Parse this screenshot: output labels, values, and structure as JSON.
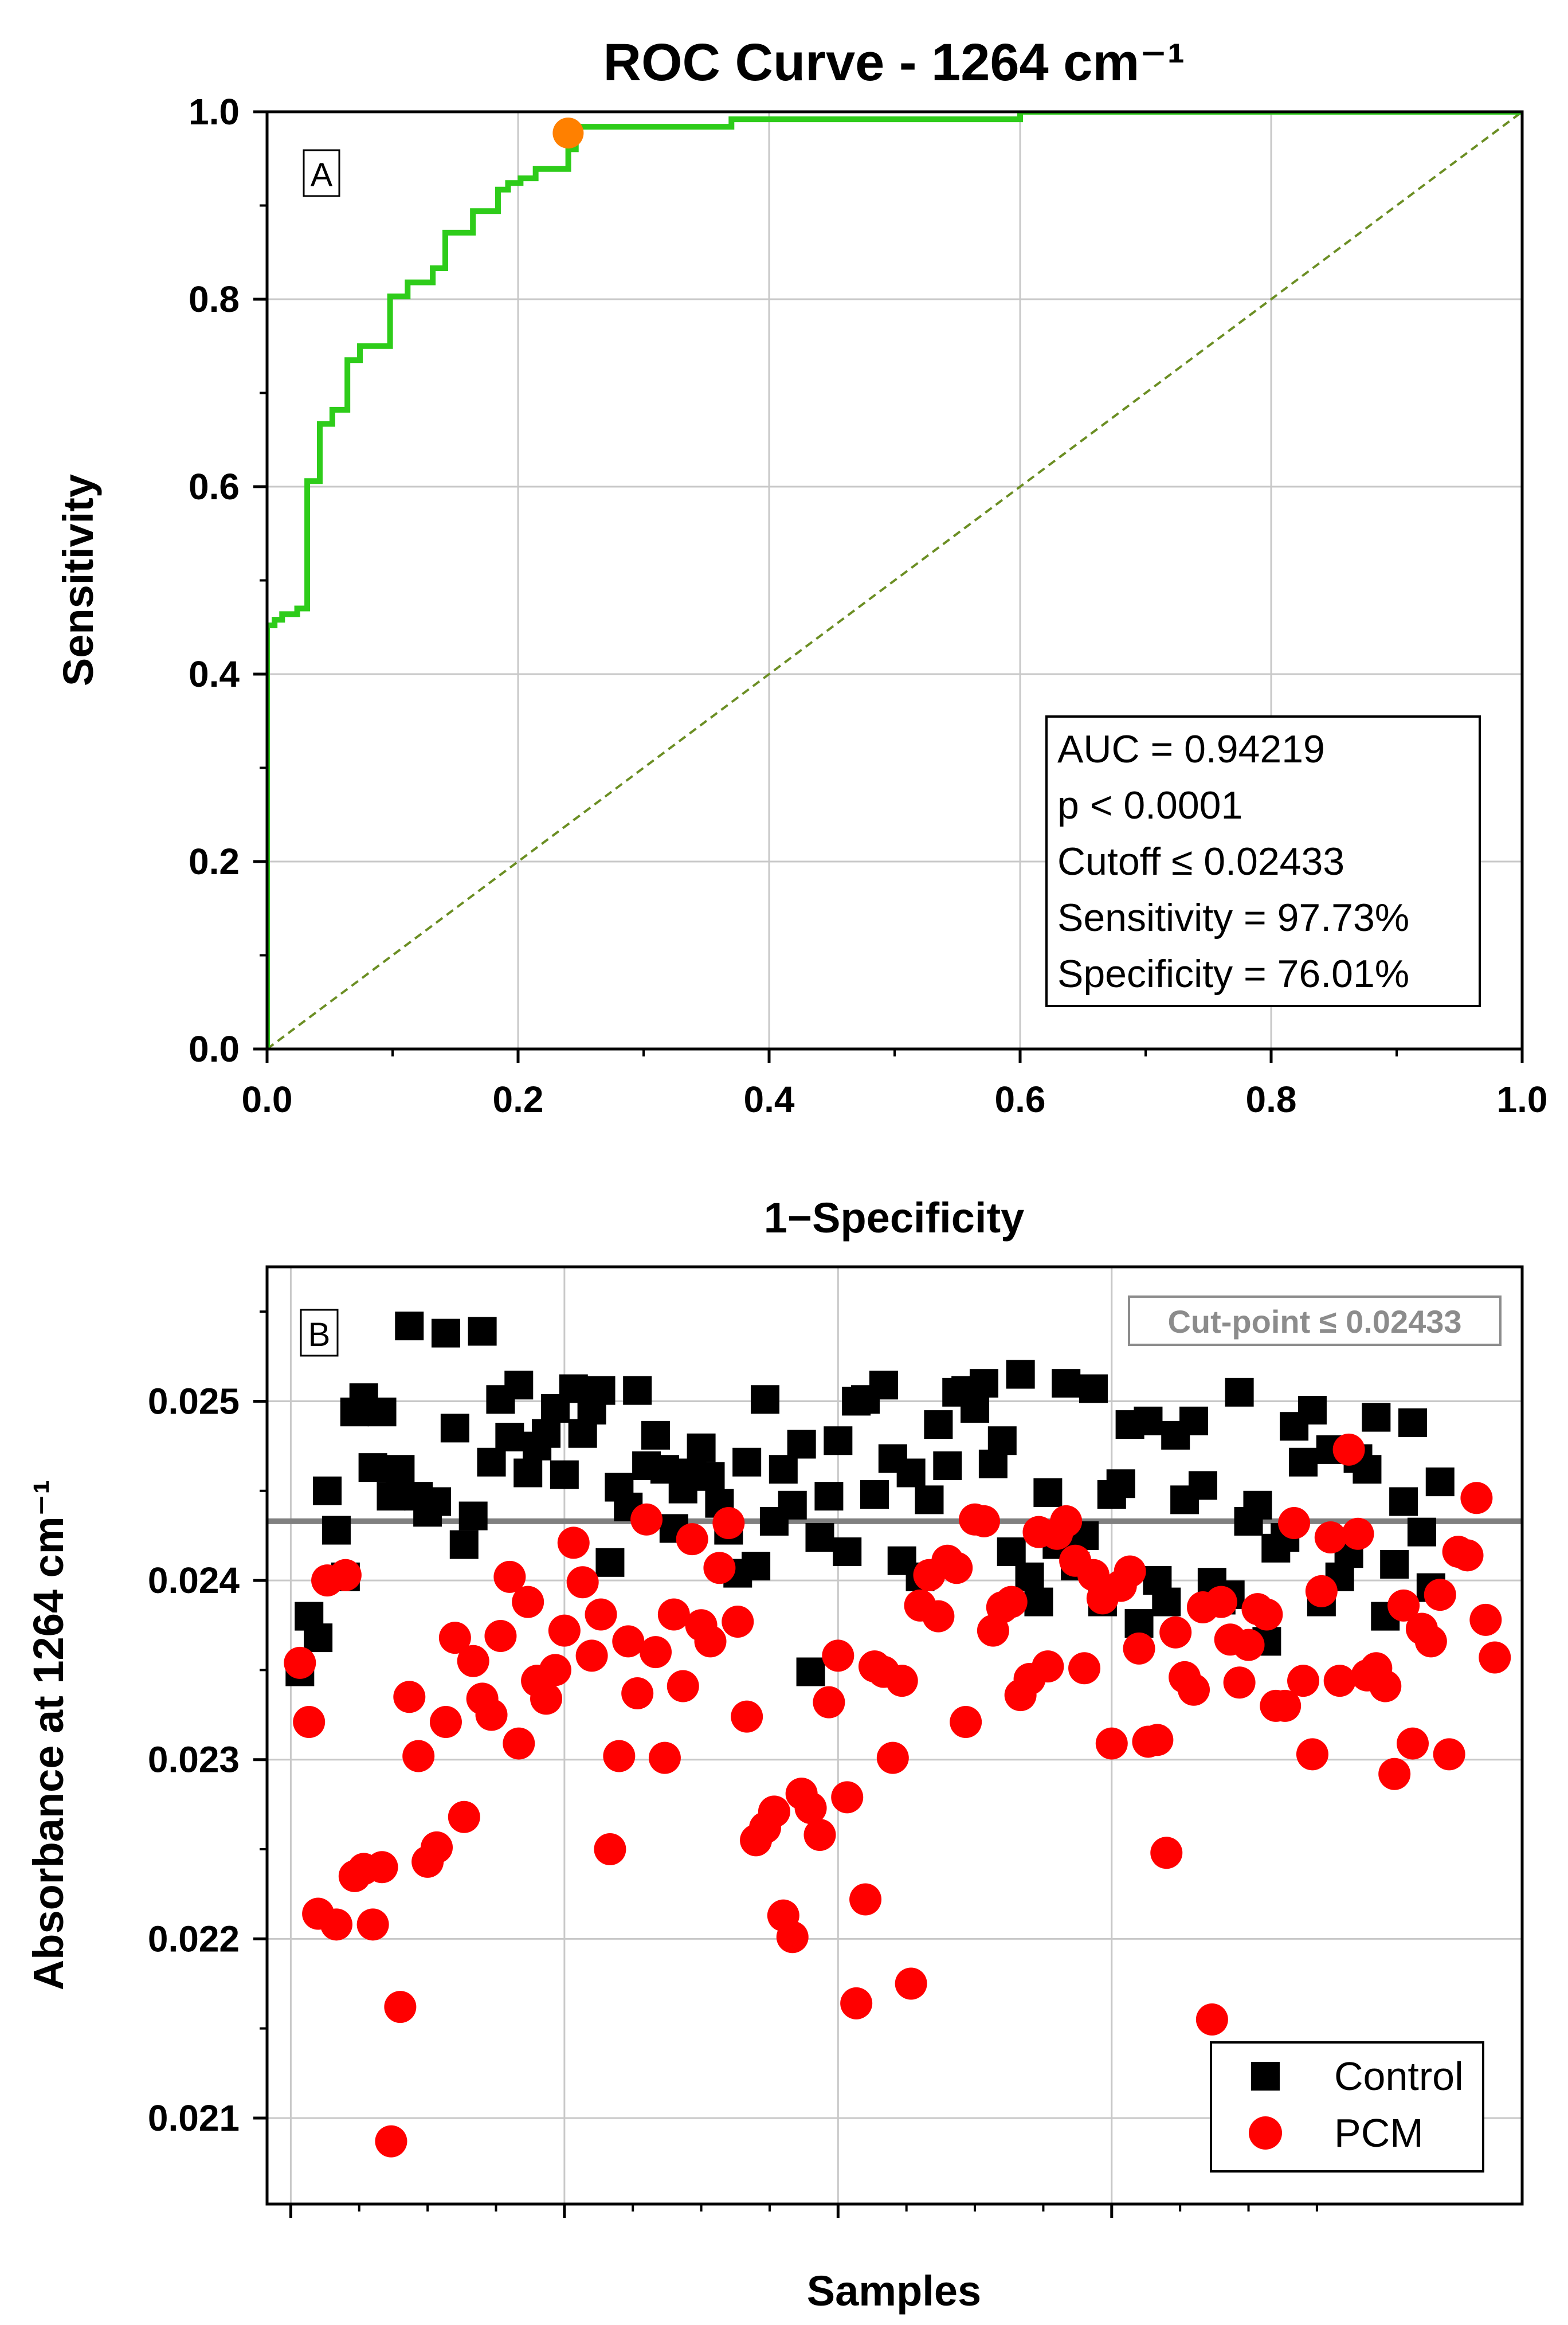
{
  "figure_title": "ROC Curve - 1264 cm⁻¹",
  "colors": {
    "roc_line": "#2ecc1a",
    "cutoff_point": "#ff8000",
    "reference_line": "#6b8e23",
    "grid": "#c8c8c8",
    "control": "#000000",
    "pcm": "#ff0000",
    "cut_line": "#808080"
  },
  "chart_data": [
    {
      "type": "line",
      "panel_label": "A",
      "xlabel": "1−Specificity",
      "ylabel": "Sensitivity",
      "xlim": [
        0,
        1
      ],
      "ylim": [
        0,
        1
      ],
      "x_ticks": [
        "0.0",
        "0.2",
        "0.4",
        "0.6",
        "0.8",
        "1.0"
      ],
      "y_ticks": [
        "0.0",
        "0.2",
        "0.4",
        "0.6",
        "0.8",
        "1.0"
      ],
      "grid": true,
      "roc_curve": {
        "x": [
          0,
          0,
          0.006,
          0.006,
          0.012,
          0.012,
          0.024,
          0.024,
          0.032,
          0.032,
          0.042,
          0.042,
          0.052,
          0.052,
          0.064,
          0.064,
          0.074,
          0.074,
          0.098,
          0.098,
          0.112,
          0.112,
          0.132,
          0.132,
          0.142,
          0.142,
          0.164,
          0.164,
          0.184,
          0.184,
          0.192,
          0.192,
          0.202,
          0.202,
          0.214,
          0.214,
          0.228,
          0.228,
          0.24,
          0.24,
          0.246,
          0.246,
          0.37,
          0.37,
          0.6,
          0.6,
          1.0
        ],
        "y": [
          0,
          0.452,
          0.452,
          0.458,
          0.458,
          0.464,
          0.464,
          0.47,
          0.47,
          0.606,
          0.606,
          0.667,
          0.667,
          0.682,
          0.682,
          0.735,
          0.735,
          0.75,
          0.75,
          0.803,
          0.803,
          0.818,
          0.818,
          0.833,
          0.833,
          0.871,
          0.871,
          0.894,
          0.894,
          0.917,
          0.917,
          0.924,
          0.924,
          0.929,
          0.929,
          0.939,
          0.939,
          0.939,
          0.939,
          0.96,
          0.96,
          0.984,
          0.984,
          0.992,
          0.992,
          1.0,
          1.0
        ]
      },
      "reference_line": {
        "x": [
          0,
          1
        ],
        "y": [
          0,
          1
        ],
        "style": "dashed"
      },
      "cutoff_point": {
        "x": 0.2399,
        "y": 0.9773
      },
      "annotation_box": {
        "position": "bottom-right",
        "lines": [
          "AUC = 0.94219",
          "p < 0.0001",
          "Cutoff ≤ 0.02433",
          "Sensitivity = 97.73%",
          "Specificity = 76.01%"
        ]
      }
    },
    {
      "type": "scatter",
      "panel_label": "B",
      "xlabel": "Samples",
      "ylabel": "Absorbance at 1264 cm⁻¹",
      "ylim": [
        0.02052,
        0.02575
      ],
      "xlim": [
        -2.6,
        135
      ],
      "y_ticks": [
        "0.021",
        "0.022",
        "0.023",
        "0.024",
        "0.025"
      ],
      "y_tick_values": [
        0.021,
        0.022,
        0.023,
        0.024,
        0.025
      ],
      "grid": true,
      "cut_line": {
        "y": 0.02433,
        "label": "Cut-point ≤ 0.02433"
      },
      "legend": {
        "position": "bottom-right",
        "entries": [
          "Control",
          "PCM"
        ]
      },
      "series": [
        {
          "name": "Control",
          "marker": "square",
          "x": [
            1,
            2,
            3,
            4,
            5,
            6,
            7,
            8,
            9,
            10,
            11,
            12,
            13,
            14,
            15,
            16,
            17,
            18,
            19,
            20,
            21,
            22,
            23,
            24,
            25,
            26,
            27,
            28,
            29,
            30,
            31,
            32,
            33,
            34,
            35,
            36,
            37,
            38,
            39,
            40,
            41,
            42,
            43,
            44,
            45,
            46,
            47,
            48,
            49,
            50,
            51,
            52,
            53,
            54,
            55,
            56,
            57,
            58,
            59,
            60,
            61,
            62,
            63,
            64,
            65,
            66,
            67,
            68,
            69,
            70,
            71,
            72,
            73,
            74,
            75,
            76,
            77,
            78,
            79,
            80,
            81,
            82,
            83,
            84,
            85,
            86,
            87,
            88,
            89,
            90,
            91,
            92,
            93,
            94,
            95,
            96,
            97,
            98,
            99,
            100,
            101,
            102,
            103,
            104,
            105,
            106,
            107,
            108,
            109,
            110,
            111,
            112,
            113,
            114,
            115,
            116,
            117,
            118,
            119,
            120,
            121,
            122,
            123,
            124,
            125,
            126
          ],
          "y": [
            0.02349,
            0.0238,
            0.02368,
            0.0245,
            0.02428,
            0.02402,
            0.02494,
            0.02502,
            0.02463,
            0.02494,
            0.02447,
            0.02462,
            0.02542,
            0.02447,
            0.02438,
            0.02444,
            0.02538,
            0.02485,
            0.0242,
            0.02436,
            0.02539,
            0.02466,
            0.02501,
            0.0248,
            0.02509,
            0.0246,
            0.02475,
            0.02482,
            0.02496,
            0.02459,
            0.02507,
            0.02482,
            0.02495,
            0.02506,
            0.0241,
            0.02452,
            0.02441,
            0.02506,
            0.02464,
            0.02481,
            0.02462,
            0.02429,
            0.02451,
            0.0246,
            0.02474,
            0.02458,
            0.02443,
            0.02428,
            0.02404,
            0.02466,
            0.02408,
            0.02501,
            0.02433,
            0.02462,
            0.02442,
            0.02476,
            0.02349,
            0.02424,
            0.02447,
            0.02478,
            0.02416,
            0.025,
            0.02501,
            0.02448,
            0.02509,
            0.02468,
            0.02411,
            0.0246,
            0.02402,
            0.02445,
            0.02487,
            0.02464,
            0.02505,
            0.02506,
            0.02496,
            0.0251,
            0.02465,
            0.02478,
            0.02416,
            0.02515,
            0.02402,
            0.02388,
            0.02449,
            0.0242,
            0.0251,
            0.02408,
            0.02425,
            0.02507,
            0.02388,
            0.02448,
            0.02454,
            0.02487,
            0.02376,
            0.02489,
            0.024,
            0.02388,
            0.02481,
            0.02445,
            0.02489,
            0.02453,
            0.02399,
            0.02389,
            0.02392,
            0.02505,
            0.02433,
            0.02442,
            0.02366,
            0.02418,
            0.02424,
            0.02486,
            0.02466,
            0.02495,
            0.02388,
            0.02473,
            0.02402,
            0.02415,
            0.02468,
            0.02462,
            0.02491,
            0.0238,
            0.02409,
            0.02444,
            0.02488,
            0.02427,
            0.02396,
            0.02455
          ]
        },
        {
          "name": "PCM",
          "marker": "circle",
          "x": [
            1,
            2,
            3,
            4,
            5,
            6,
            7,
            8,
            9,
            10,
            11,
            12,
            13,
            14,
            15,
            16,
            17,
            18,
            19,
            20,
            21,
            22,
            23,
            24,
            25,
            26,
            27,
            28,
            29,
            30,
            31,
            32,
            33,
            34,
            35,
            36,
            37,
            38,
            39,
            40,
            41,
            42,
            43,
            44,
            45,
            46,
            47,
            48,
            49,
            50,
            51,
            52,
            53,
            54,
            55,
            56,
            57,
            58,
            59,
            60,
            61,
            62,
            63,
            64,
            65,
            66,
            67,
            68,
            69,
            70,
            71,
            72,
            73,
            74,
            75,
            76,
            77,
            78,
            79,
            80,
            81,
            82,
            83,
            84,
            85,
            86,
            87,
            88,
            89,
            90,
            91,
            92,
            93,
            94,
            95,
            96,
            97,
            98,
            99,
            100,
            101,
            102,
            103,
            104,
            105,
            106,
            107,
            108,
            109,
            110,
            111,
            112,
            113,
            114,
            115,
            116,
            117,
            118,
            119,
            120,
            121,
            122,
            123,
            124,
            125,
            126,
            127,
            128,
            129,
            130,
            131,
            132
          ],
          "y": [
            0.02354,
            0.02321,
            0.02214,
            0.024,
            0.02208,
            0.02403,
            0.02235,
            0.02239,
            0.02208,
            0.0224,
            0.02087,
            0.02162,
            0.02335,
            0.02302,
            0.02243,
            0.02251,
            0.02321,
            0.02368,
            0.02268,
            0.02355,
            0.02334,
            0.02325,
            0.02369,
            0.02402,
            0.02309,
            0.02388,
            0.02344,
            0.02334,
            0.0235,
            0.02372,
            0.02421,
            0.02399,
            0.02358,
            0.02381,
            0.0225,
            0.02302,
            0.02366,
            0.02337,
            0.02434,
            0.0236,
            0.02301,
            0.02381,
            0.02341,
            0.02423,
            0.02375,
            0.02366,
            0.02407,
            0.02432,
            0.02377,
            0.02324,
            0.02255,
            0.02262,
            0.02271,
            0.02213,
            0.02201,
            0.02281,
            0.02273,
            0.02258,
            0.02332,
            0.02358,
            0.02279,
            0.02164,
            0.02222,
            0.02352,
            0.02349,
            0.02301,
            0.02344,
            0.02175,
            0.02386,
            0.02403,
            0.0238,
            0.02411,
            0.02407,
            0.02321,
            0.02434,
            0.02433,
            0.02372,
            0.02385,
            0.02388,
            0.02336,
            0.02345,
            0.02427,
            0.02352,
            0.02426,
            0.02433,
            0.02411,
            0.02351,
            0.02403,
            0.0239,
            0.02309,
            0.02397,
            0.02405,
            0.02362,
            0.0231,
            0.02311,
            0.02248,
            0.02371,
            0.02346,
            0.02339,
            0.02385,
            0.02155,
            0.02388,
            0.02367,
            0.02343,
            0.02364,
            0.02384,
            0.02381,
            0.0233,
            0.0233,
            0.02432,
            0.02344,
            0.02303,
            0.02394,
            0.02424,
            0.02344,
            0.02473,
            0.02426,
            0.02347,
            0.02351,
            0.02341,
            0.02292,
            0.02386,
            0.02309,
            0.02373,
            0.02366,
            0.02392,
            0.02303,
            0.02416,
            0.02414,
            0.02446,
            0.02378,
            0.02357
          ]
        }
      ]
    }
  ]
}
